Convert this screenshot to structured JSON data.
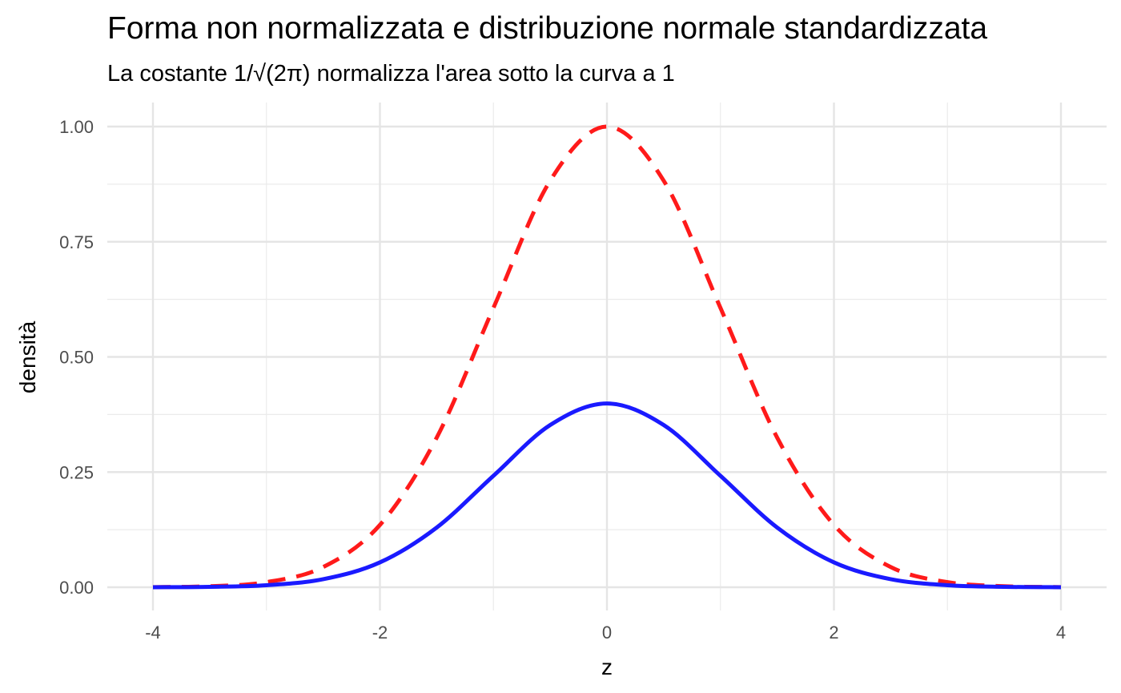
{
  "chart_data": {
    "type": "line",
    "title": "Forma non normalizzata e distribuzione normale standardizzata",
    "subtitle": "La costante 1/√(2π) normalizza l'area sotto la curva a 1",
    "xlabel": "z",
    "ylabel": "densità",
    "xlim": [
      -4,
      4
    ],
    "ylim": [
      0,
      1
    ],
    "x_ticks": [
      "-4",
      "-2",
      "0",
      "2",
      "4"
    ],
    "y_ticks": [
      "0.00",
      "0.25",
      "0.50",
      "0.75",
      "1.00"
    ],
    "grid": true,
    "legend": "none",
    "x": [
      -4,
      -3.5,
      -3,
      -2.5,
      -2,
      -1.5,
      -1,
      -0.5,
      0,
      0.5,
      1,
      1.5,
      2,
      2.5,
      3,
      3.5,
      4
    ],
    "series": [
      {
        "color": "#ff1a1a",
        "dash": "dashed",
        "values": [
          0.0003,
          0.0022,
          0.0111,
          0.0439,
          0.1353,
          0.3247,
          0.6065,
          0.8825,
          1.0,
          0.8825,
          0.6065,
          0.3247,
          0.1353,
          0.0439,
          0.0111,
          0.0022,
          0.0003
        ]
      },
      {
        "color": "#1a1aff",
        "dash": "solid",
        "values": [
          0.0001,
          0.0009,
          0.0044,
          0.0175,
          0.054,
          0.1295,
          0.242,
          0.3521,
          0.3989,
          0.3521,
          0.242,
          0.1295,
          0.054,
          0.0175,
          0.0044,
          0.0009,
          0.0001
        ]
      }
    ]
  }
}
